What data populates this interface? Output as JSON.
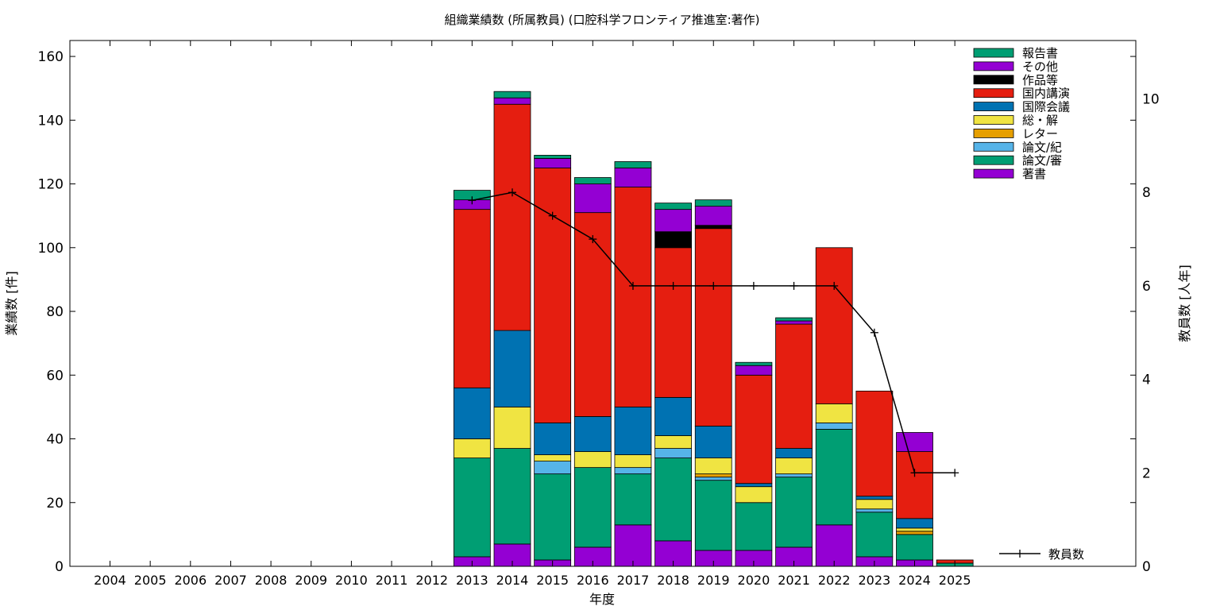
{
  "chart_data": {
    "type": "bar",
    "stacked": true,
    "title": "組織業績数 (所属教員) (口腔科学フロンティア推進室:著作)",
    "xlabel": "年度",
    "ylabel": "業績数 [件]",
    "y2label": "教員数 [人年]",
    "ylim": [
      0,
      165
    ],
    "y2lim": [
      0,
      11.25
    ],
    "yticks": [
      0,
      20,
      40,
      60,
      80,
      100,
      120,
      140,
      160
    ],
    "y2ticks": [
      0,
      2,
      4,
      6,
      8,
      10
    ],
    "grid": false,
    "legend_position": "top-right",
    "categories": [
      "2004",
      "2005",
      "2006",
      "2007",
      "2008",
      "2009",
      "2010",
      "2011",
      "2012",
      "2013",
      "2014",
      "2015",
      "2016",
      "2017",
      "2018",
      "2019",
      "2020",
      "2021",
      "2022",
      "2023",
      "2024",
      "2025"
    ],
    "series": [
      {
        "name": "著書",
        "color": "#9400d3",
        "values": [
          0,
          0,
          0,
          0,
          0,
          0,
          0,
          0,
          0,
          3,
          7,
          2,
          6,
          13,
          8,
          5,
          5,
          6,
          13,
          3,
          2,
          0
        ]
      },
      {
        "name": "論文/審",
        "color": "#009e73",
        "values": [
          0,
          0,
          0,
          0,
          0,
          0,
          0,
          0,
          0,
          31,
          30,
          27,
          25,
          16,
          26,
          22,
          15,
          22,
          30,
          14,
          8,
          1
        ]
      },
      {
        "name": "論文/紀",
        "color": "#56b4e9",
        "values": [
          0,
          0,
          0,
          0,
          0,
          0,
          0,
          0,
          0,
          0,
          0,
          4,
          0,
          2,
          3,
          1,
          0,
          1,
          2,
          1,
          0,
          0
        ]
      },
      {
        "name": "レター",
        "color": "#e69f00",
        "values": [
          0,
          0,
          0,
          0,
          0,
          0,
          0,
          0,
          0,
          0,
          0,
          0,
          0,
          0,
          0,
          1,
          0,
          0,
          0,
          0,
          1,
          0
        ]
      },
      {
        "name": "総・解",
        "color": "#f0e442",
        "values": [
          0,
          0,
          0,
          0,
          0,
          0,
          0,
          0,
          0,
          6,
          13,
          2,
          5,
          4,
          4,
          5,
          5,
          5,
          6,
          3,
          1,
          0
        ]
      },
      {
        "name": "国際会議",
        "color": "#0072b2",
        "values": [
          0,
          0,
          0,
          0,
          0,
          0,
          0,
          0,
          0,
          16,
          24,
          10,
          11,
          15,
          12,
          10,
          1,
          3,
          0,
          1,
          3,
          0
        ]
      },
      {
        "name": "国内講演",
        "color": "#e51e10",
        "values": [
          0,
          0,
          0,
          0,
          0,
          0,
          0,
          0,
          0,
          56,
          71,
          80,
          64,
          69,
          47,
          62,
          34,
          39,
          49,
          33,
          21,
          1
        ]
      },
      {
        "name": "作品等",
        "color": "#000000",
        "values": [
          0,
          0,
          0,
          0,
          0,
          0,
          0,
          0,
          0,
          0,
          0,
          0,
          0,
          0,
          5,
          1,
          0,
          0,
          0,
          0,
          0,
          0
        ]
      },
      {
        "name": "その他",
        "color": "#9400d3",
        "values": [
          0,
          0,
          0,
          0,
          0,
          0,
          0,
          0,
          0,
          3,
          2,
          3,
          9,
          6,
          7,
          6,
          3,
          1,
          0,
          0,
          6,
          0
        ]
      },
      {
        "name": "報告書",
        "color": "#009e73",
        "values": [
          0,
          0,
          0,
          0,
          0,
          0,
          0,
          0,
          0,
          3,
          2,
          1,
          2,
          2,
          2,
          2,
          1,
          1,
          0,
          0,
          0,
          0
        ]
      }
    ],
    "legend": [
      "報告書",
      "その他",
      "作品等",
      "国内講演",
      "国際会議",
      "総・解",
      "レター",
      "論文/紀",
      "論文/審",
      "著書"
    ],
    "line_series": {
      "name": "教員数",
      "color": "#000000",
      "axis": "y2",
      "x": [
        "2013",
        "2014",
        "2015",
        "2016",
        "2017",
        "2018",
        "2019",
        "2020",
        "2021",
        "2022",
        "2023",
        "2024",
        "2025"
      ],
      "values": [
        7.83,
        8,
        7.5,
        7,
        6,
        6,
        6,
        6,
        6,
        6,
        5,
        2,
        2
      ]
    }
  }
}
